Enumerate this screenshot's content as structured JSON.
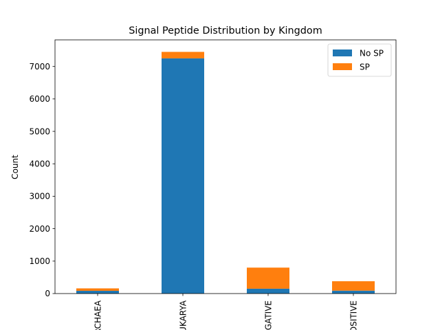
{
  "chart_data": {
    "type": "bar",
    "stacked": true,
    "title": "Signal Peptide Distribution by Kingdom",
    "xlabel": "",
    "ylabel": "Count",
    "categories": [
      "ARCHAEA",
      "EUKARYA",
      "NEGATIVE",
      "POSITIVE"
    ],
    "series": [
      {
        "name": "No SP",
        "color": "#1f77b4",
        "values": [
          85,
          7250,
          150,
          90
        ]
      },
      {
        "name": "SP",
        "color": "#ff7f0e",
        "values": [
          75,
          200,
          650,
          290
        ]
      }
    ],
    "ylim": [
      0,
      7820
    ],
    "yticks": [
      0,
      1000,
      2000,
      3000,
      4000,
      5000,
      6000,
      7000
    ],
    "grid": false,
    "legend_position": "top-right"
  }
}
